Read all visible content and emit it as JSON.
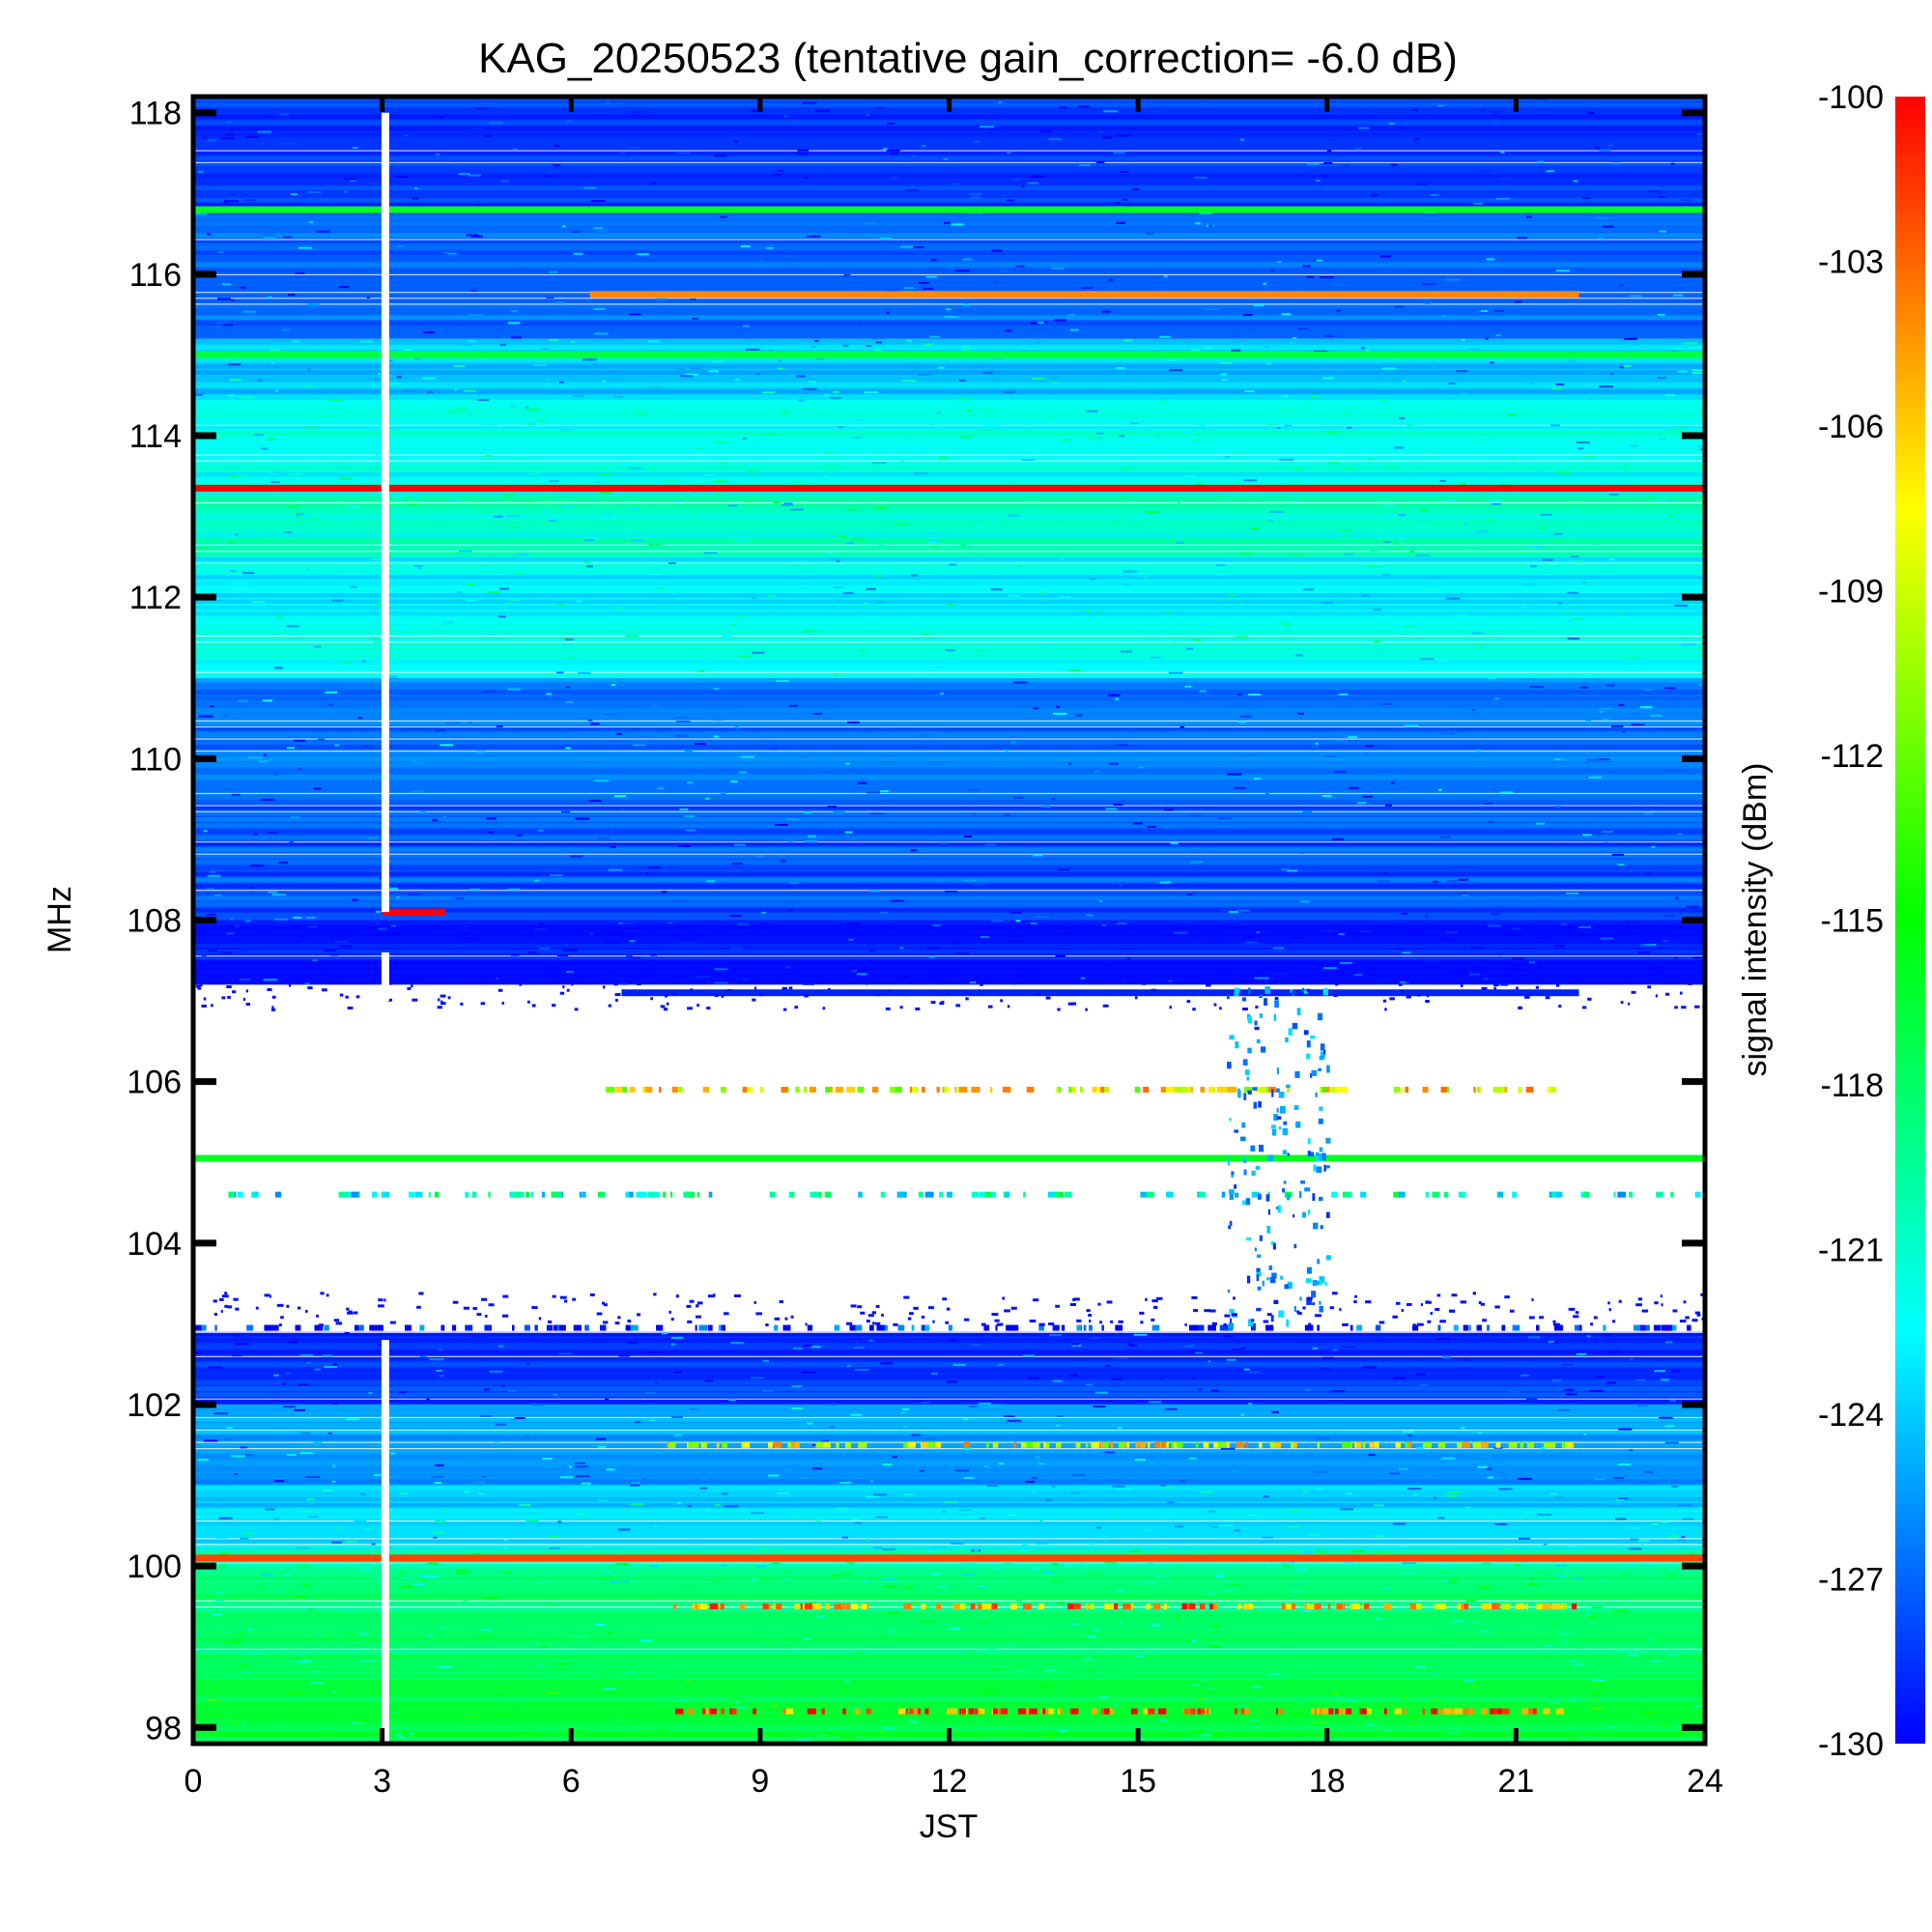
{
  "chart_data": {
    "type": "heatmap",
    "title": "KAG_20250523 (tentative gain_correction= -6.0 dB)",
    "xlabel": "JST",
    "ylabel": "MHz",
    "colorbar_label": "signal intensity (dBm)",
    "xlim": [
      0,
      24
    ],
    "ylim": [
      97.8,
      118.2
    ],
    "clim": [
      -130,
      -100
    ],
    "x_ticks": [
      0,
      3,
      6,
      9,
      12,
      15,
      18,
      21,
      24
    ],
    "y_ticks": [
      98,
      100,
      102,
      104,
      106,
      108,
      110,
      112,
      114,
      116,
      118
    ],
    "colorbar_ticks": [
      -100,
      -103,
      -106,
      -109,
      -112,
      -115,
      -118,
      -121,
      -124,
      -127,
      -130
    ],
    "colormap": [
      "#0000ff",
      "#00ffff",
      "#00ff00",
      "#ffff00",
      "#ff0000"
    ],
    "grid": false,
    "bands": [
      {
        "freq": [
          97.8,
          98.6
        ],
        "dbm": -117
      },
      {
        "freq": [
          98.6,
          99.8
        ],
        "dbm": -118.5
      },
      {
        "freq": [
          99.8,
          100.2
        ],
        "dbm": -119.5
      },
      {
        "freq": [
          100.2,
          101.0
        ],
        "dbm": -123.5
      },
      {
        "freq": [
          101.0,
          102.0
        ],
        "dbm": -125.5
      },
      {
        "freq": [
          102.0,
          102.9
        ],
        "dbm": -128.5
      },
      {
        "freq": [
          107.2,
          108.0
        ],
        "dbm": -129.5
      },
      {
        "freq": [
          108.0,
          109.5
        ],
        "dbm": -127.5
      },
      {
        "freq": [
          109.5,
          111.0
        ],
        "dbm": -126.5
      },
      {
        "freq": [
          111.0,
          112.5
        ],
        "dbm": -122.5
      },
      {
        "freq": [
          112.5,
          113.4
        ],
        "dbm": -121
      },
      {
        "freq": [
          113.4,
          114.5
        ],
        "dbm": -122
      },
      {
        "freq": [
          114.5,
          115.2
        ],
        "dbm": -124
      },
      {
        "freq": [
          115.2,
          116.8
        ],
        "dbm": -127
      },
      {
        "freq": [
          116.8,
          118.2
        ],
        "dbm": -128.5
      }
    ],
    "lines": [
      {
        "freq": 113.35,
        "t": [
          0,
          24
        ],
        "dbm": -100
      },
      {
        "freq": 100.1,
        "t": [
          0,
          24
        ],
        "dbm": -102
      },
      {
        "freq": 116.8,
        "t": [
          0,
          24
        ],
        "dbm": -116
      },
      {
        "freq": 115.0,
        "t": [
          0,
          24
        ],
        "dbm": -117
      },
      {
        "freq": 105.05,
        "t": [
          0,
          24
        ],
        "dbm": -116
      },
      {
        "freq": 115.75,
        "t": [
          6.3,
          22.0
        ],
        "dbm": -104
      },
      {
        "freq": 107.1,
        "t": [
          6.8,
          22.0
        ],
        "dbm": -129
      },
      {
        "freq": 108.1,
        "t": [
          3.0,
          4.0
        ],
        "dbm": -100
      }
    ],
    "sparse_lines": [
      {
        "freq": 105.9,
        "t": [
          6.5,
          22.0
        ],
        "dbm": -108
      },
      {
        "freq": 104.6,
        "t": [
          0,
          24
        ],
        "dbm": -121
      },
      {
        "freq": 102.95,
        "t": [
          0,
          24
        ],
        "dbm": -129.5
      },
      {
        "freq": 98.2,
        "t": [
          7.5,
          22.0
        ],
        "dbm": -102
      },
      {
        "freq": 99.5,
        "t": [
          7.5,
          22.0
        ],
        "dbm": -105
      },
      {
        "freq": 101.5,
        "t": [
          7.5,
          22.0
        ],
        "dbm": -108
      }
    ],
    "data_gap": {
      "t": 3.05
    }
  }
}
